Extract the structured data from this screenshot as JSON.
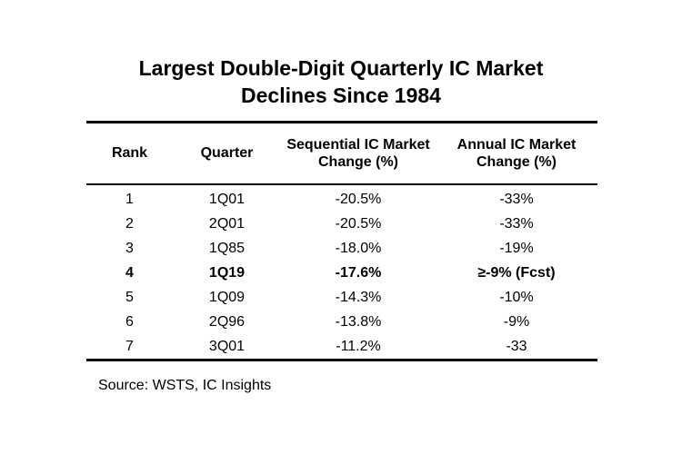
{
  "title": {
    "line1": "Largest Double-Digit Quarterly IC Market",
    "line2": "Declines Since 1984"
  },
  "table": {
    "headers": {
      "rank": "Rank",
      "quarter": "Quarter",
      "sequential": "Sequential IC Market Change (%)",
      "annual": "Annual IC Market Change (%)"
    },
    "rows": [
      {
        "rank": "1",
        "quarter": "1Q01",
        "sequential": "-20.5%",
        "annual": "-33%"
      },
      {
        "rank": "2",
        "quarter": "2Q01",
        "sequential": "-20.5%",
        "annual": "-33%"
      },
      {
        "rank": "3",
        "quarter": "1Q85",
        "sequential": "-18.0%",
        "annual": "-19%"
      },
      {
        "rank": "4",
        "quarter": "1Q19",
        "sequential": "-17.6%",
        "annual": "≥-9% (Fcst)"
      },
      {
        "rank": "5",
        "quarter": "1Q09",
        "sequential": "-14.3%",
        "annual": "-10%"
      },
      {
        "rank": "6",
        "quarter": "2Q96",
        "sequential": "-13.8%",
        "annual": "-9%"
      },
      {
        "rank": "7",
        "quarter": "3Q01",
        "sequential": "-11.2%",
        "annual": "-33"
      }
    ]
  },
  "source": "Source: WSTS, IC Insights"
}
